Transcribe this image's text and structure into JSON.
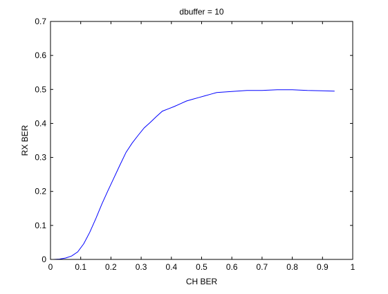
{
  "chart_data": {
    "type": "line",
    "title": "dbuffer = 10",
    "xlabel": "CH BER",
    "ylabel": "RX BER",
    "xlim": [
      0,
      1
    ],
    "ylim": [
      0,
      0.7
    ],
    "xticks": [
      0,
      0.1,
      0.2,
      0.3,
      0.4,
      0.5,
      0.6,
      0.7,
      0.8,
      0.9,
      1
    ],
    "xtick_labels": [
      "0",
      "0.1",
      "0.2",
      "0.3",
      "0.4",
      "0.5",
      "0.6",
      "0.7",
      "0.8",
      "0.9",
      "1"
    ],
    "yticks": [
      0,
      0.1,
      0.2,
      0.3,
      0.4,
      0.5,
      0.6,
      0.7
    ],
    "ytick_labels": [
      "0",
      "0.1",
      "0.2",
      "0.3",
      "0.4",
      "0.5",
      "0.6",
      "0.7"
    ],
    "grid": false,
    "series": [
      {
        "name": "RX BER",
        "color": "#0000ff",
        "x": [
          0.01,
          0.03,
          0.05,
          0.07,
          0.09,
          0.11,
          0.13,
          0.15,
          0.17,
          0.19,
          0.21,
          0.23,
          0.25,
          0.27,
          0.29,
          0.31,
          0.33,
          0.35,
          0.37,
          0.39,
          0.41,
          0.43,
          0.45,
          0.47,
          0.49,
          0.51,
          0.53,
          0.55,
          0.6,
          0.65,
          0.7,
          0.75,
          0.8,
          0.85,
          0.9,
          0.94
        ],
        "y": [
          0.0,
          0.001,
          0.004,
          0.01,
          0.022,
          0.046,
          0.08,
          0.12,
          0.163,
          0.202,
          0.24,
          0.278,
          0.315,
          0.342,
          0.365,
          0.387,
          0.403,
          0.42,
          0.436,
          0.443,
          0.45,
          0.458,
          0.466,
          0.471,
          0.476,
          0.481,
          0.486,
          0.491,
          0.494,
          0.497,
          0.497,
          0.499,
          0.499,
          0.497,
          0.496,
          0.495
        ]
      }
    ]
  }
}
